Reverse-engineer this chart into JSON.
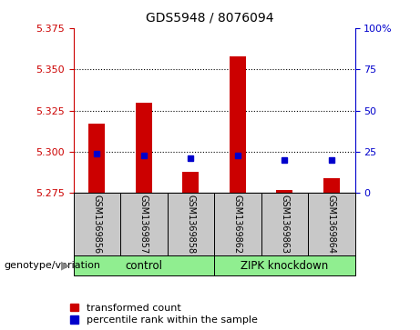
{
  "title": "GDS5948 / 8076094",
  "samples": [
    "GSM1369856",
    "GSM1369857",
    "GSM1369858",
    "GSM1369862",
    "GSM1369863",
    "GSM1369864"
  ],
  "bar_values": [
    5.317,
    5.33,
    5.288,
    5.358,
    5.277,
    5.284
  ],
  "blue_values": [
    5.299,
    5.298,
    5.296,
    5.298,
    5.295,
    5.295
  ],
  "bar_baseline": 5.275,
  "ylim_left": [
    5.275,
    5.375
  ],
  "ylim_right": [
    0,
    100
  ],
  "yticks_left": [
    5.275,
    5.3,
    5.325,
    5.35,
    5.375
  ],
  "yticks_right": [
    0,
    25,
    50,
    75,
    100
  ],
  "ytick_labels_right": [
    "0",
    "25",
    "50",
    "75",
    "100%"
  ],
  "group_labels": [
    "control",
    "ZIPK knockdown"
  ],
  "group_color": "#90EE90",
  "bar_color": "#CC0000",
  "marker_color": "#0000CC",
  "bg_color": "#C8C8C8",
  "plot_bg": "#FFFFFF",
  "left_axis_color": "#CC0000",
  "right_axis_color": "#0000CC",
  "bar_width": 0.35,
  "legend_items": [
    "transformed count",
    "percentile rank within the sample"
  ],
  "genotype_label": "genotype/variation",
  "gridlines": [
    5.3,
    5.325,
    5.35
  ]
}
